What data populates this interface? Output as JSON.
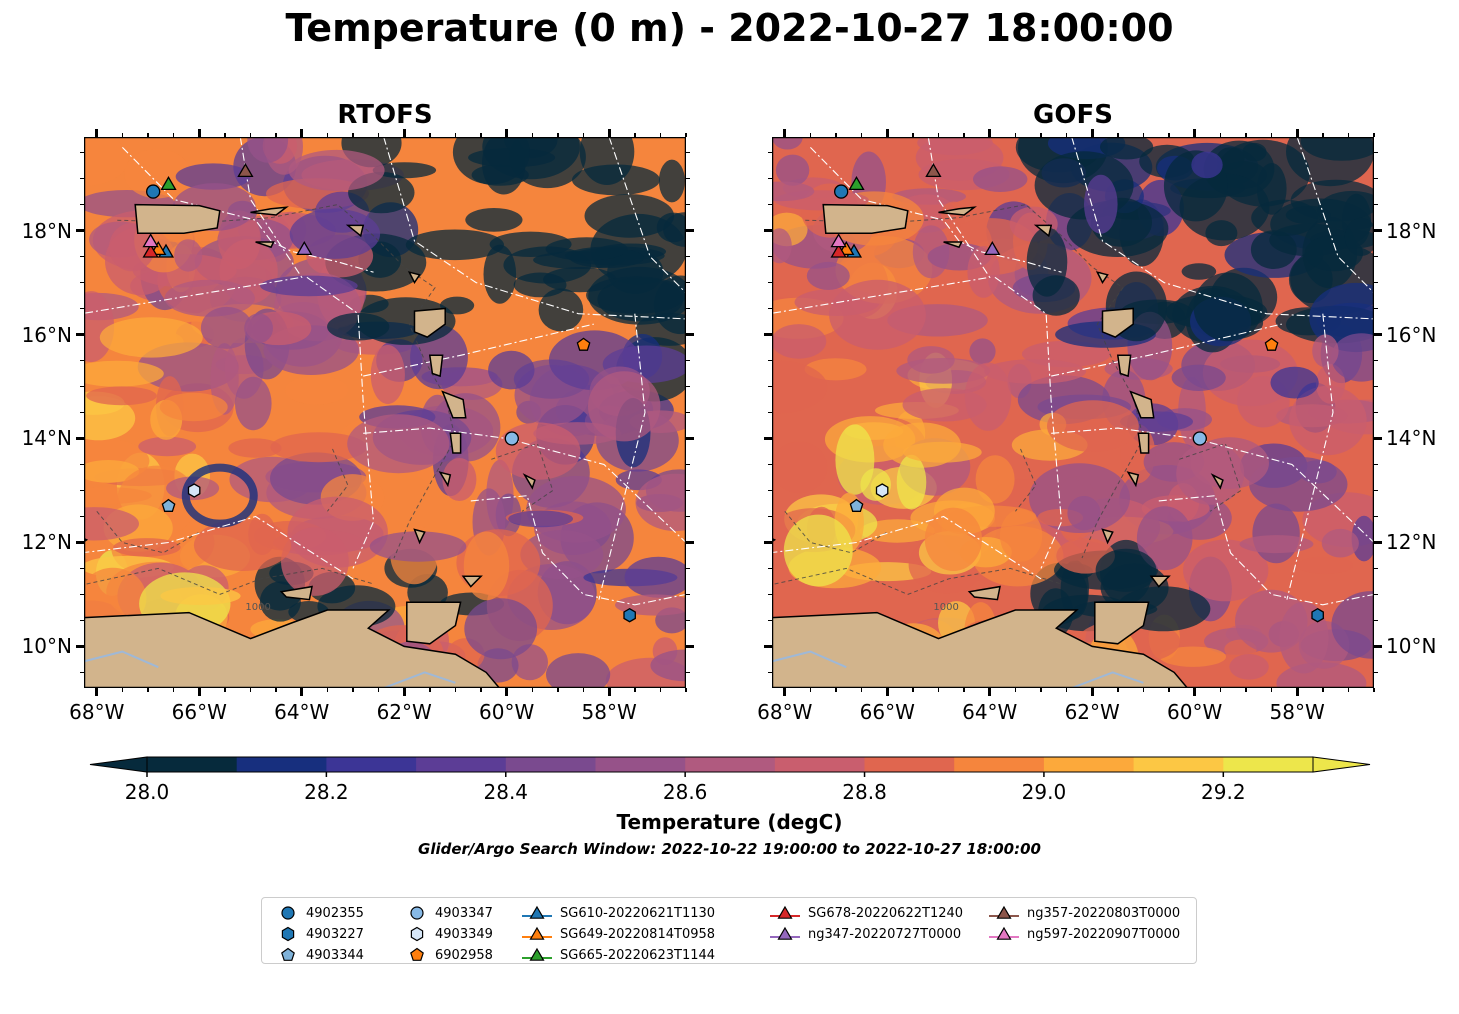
{
  "title": "Temperature (0 m) - 2022-10-27 18:00:00",
  "panels": [
    {
      "title": "RTOFS"
    },
    {
      "title": "GOFS"
    }
  ],
  "x_ticks": [
    "68°W",
    "66°W",
    "64°W",
    "62°W",
    "60°W",
    "58°W"
  ],
  "y_ticks": [
    "18°N",
    "16°N",
    "14°N",
    "12°N",
    "10°N"
  ],
  "contour_label": "1000",
  "land_color": "#d2b48c",
  "colorbar": {
    "label": "Temperature (degC)",
    "ticks": [
      "28.0",
      "28.2",
      "28.4",
      "28.6",
      "28.8",
      "29.0",
      "29.2"
    ],
    "colors": [
      "#062a3c",
      "#172f7e",
      "#3c3596",
      "#5c3d96",
      "#7a4a8f",
      "#965289",
      "#b05a7f",
      "#c95e6e",
      "#e0664f",
      "#f5853d",
      "#fca93b",
      "#fcc744",
      "#ede64b"
    ],
    "under_color": "#062a3c",
    "over_color": "#ede64b"
  },
  "search_window": "Glider/Argo Search Window: 2022-10-22 19:00:00 to 2022-10-27 18:00:00",
  "chart_data": {
    "type": "heatmap",
    "variable": "Temperature (0 m)",
    "units": "degC",
    "time": "2022-10-27 18:00:00",
    "models": [
      "RTOFS",
      "GOFS"
    ],
    "xlim": [
      -68.25,
      -56.5
    ],
    "ylim": [
      9.2,
      19.8
    ],
    "clim": [
      28.0,
      29.3
    ],
    "colorbar_extend": "both",
    "floats": [
      {
        "id": "4902355",
        "marker": "circle",
        "color": "#1f77b4",
        "lon": -66.9,
        "lat": 18.75
      },
      {
        "id": "4903227",
        "marker": "hexagon",
        "color": "#1f77b4",
        "lon": -57.6,
        "lat": 10.6
      },
      {
        "id": "4903344",
        "marker": "pentagon",
        "color": "#7fb2d9",
        "lon": -66.6,
        "lat": 12.7
      },
      {
        "id": "4903347",
        "marker": "circle",
        "color": "#87b9e6",
        "lon": -59.9,
        "lat": 14.0
      },
      {
        "id": "4903349",
        "marker": "hexagon",
        "color": "#d6e6f7",
        "lon": -66.1,
        "lat": 13.0
      },
      {
        "id": "6902958",
        "marker": "pentagon",
        "color": "#ff7f0e",
        "lon": -58.5,
        "lat": 15.8
      }
    ],
    "gliders": [
      {
        "id": "SG610-20220621T1130",
        "color": "#1f77b4",
        "lon": -66.65,
        "lat": 17.6
      },
      {
        "id": "SG649-20220814T0958",
        "color": "#ff7f0e",
        "lon": -66.8,
        "lat": 17.65
      },
      {
        "id": "SG665-20220623T1144",
        "color": "#2ca02c",
        "lon": -66.6,
        "lat": 18.9
      },
      {
        "id": "SG678-20220622T1240",
        "color": "#d62728",
        "lon": -66.95,
        "lat": 17.6
      },
      {
        "id": "ng347-20220727T0000",
        "color": "#9467bd",
        "lon": -63.95,
        "lat": 17.65
      },
      {
        "id": "ng357-20220803T0000",
        "color": "#8c564b",
        "lon": -65.1,
        "lat": 19.15
      },
      {
        "id": "ng597-20220907T0000",
        "color": "#e377c2",
        "lon": -66.95,
        "lat": 17.8
      }
    ]
  },
  "legend": {
    "items": [
      {
        "label": "4902355",
        "marker": "circle",
        "color": "#1f77b4",
        "line": false
      },
      {
        "label": "4903227",
        "marker": "hexagon",
        "color": "#1f77b4",
        "line": false
      },
      {
        "label": "4903344",
        "marker": "pentagon",
        "color": "#7fb2d9",
        "line": false
      },
      {
        "label": "4903347",
        "marker": "circle",
        "color": "#87b9e6",
        "line": false
      },
      {
        "label": "4903349",
        "marker": "hexagon",
        "color": "#d6e6f7",
        "line": false
      },
      {
        "label": "6902958",
        "marker": "pentagon",
        "color": "#ff7f0e",
        "line": false
      },
      {
        "label": "SG610-20220621T1130",
        "marker": "triangle",
        "color": "#1f77b4",
        "line": true
      },
      {
        "label": "SG649-20220814T0958",
        "marker": "triangle",
        "color": "#ff7f0e",
        "line": true
      },
      {
        "label": "SG665-20220623T1144",
        "marker": "triangle",
        "color": "#2ca02c",
        "line": true
      },
      {
        "label": "SG678-20220622T1240",
        "marker": "triangle",
        "color": "#d62728",
        "line": true
      },
      {
        "label": "ng347-20220727T0000",
        "marker": "triangle",
        "color": "#9467bd",
        "line": true
      },
      {
        "label": "ng357-20220803T0000",
        "marker": "triangle",
        "color": "#8c564b",
        "line": true
      },
      {
        "label": "ng597-20220907T0000",
        "marker": "triangle",
        "color": "#e377c2",
        "line": true
      }
    ]
  }
}
